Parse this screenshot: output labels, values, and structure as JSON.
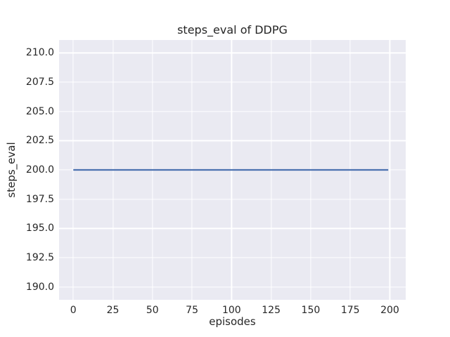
{
  "colors": {
    "figure_background": "#ffffff",
    "plot_background": "#eaeaf2",
    "gridline": "#ffffff",
    "line": "#4c72b0",
    "text": "#262626"
  },
  "chart_data": {
    "type": "line",
    "title": "steps_eval of DDPG",
    "xlabel": "episodes",
    "ylabel": "steps_eval",
    "xlim": [
      -9,
      210
    ],
    "ylim": [
      188.9,
      211.1
    ],
    "xtick_values": [
      0,
      25,
      50,
      75,
      100,
      125,
      150,
      175,
      200
    ],
    "xtick_labels": [
      "0",
      "25",
      "50",
      "75",
      "100",
      "125",
      "150",
      "175",
      "200"
    ],
    "ytick_values": [
      190.0,
      192.5,
      195.0,
      197.5,
      200.0,
      202.5,
      205.0,
      207.5,
      210.0
    ],
    "ytick_labels": [
      "190.0",
      "192.5",
      "195.0",
      "197.5",
      "200.0",
      "202.5",
      "205.0",
      "207.5",
      "210.0"
    ],
    "grid": true,
    "legend_position": "none",
    "series": [
      {
        "name": "steps_eval",
        "color": "#4c72b0",
        "x": [
          0,
          199
        ],
        "y": [
          200,
          200
        ]
      }
    ]
  }
}
